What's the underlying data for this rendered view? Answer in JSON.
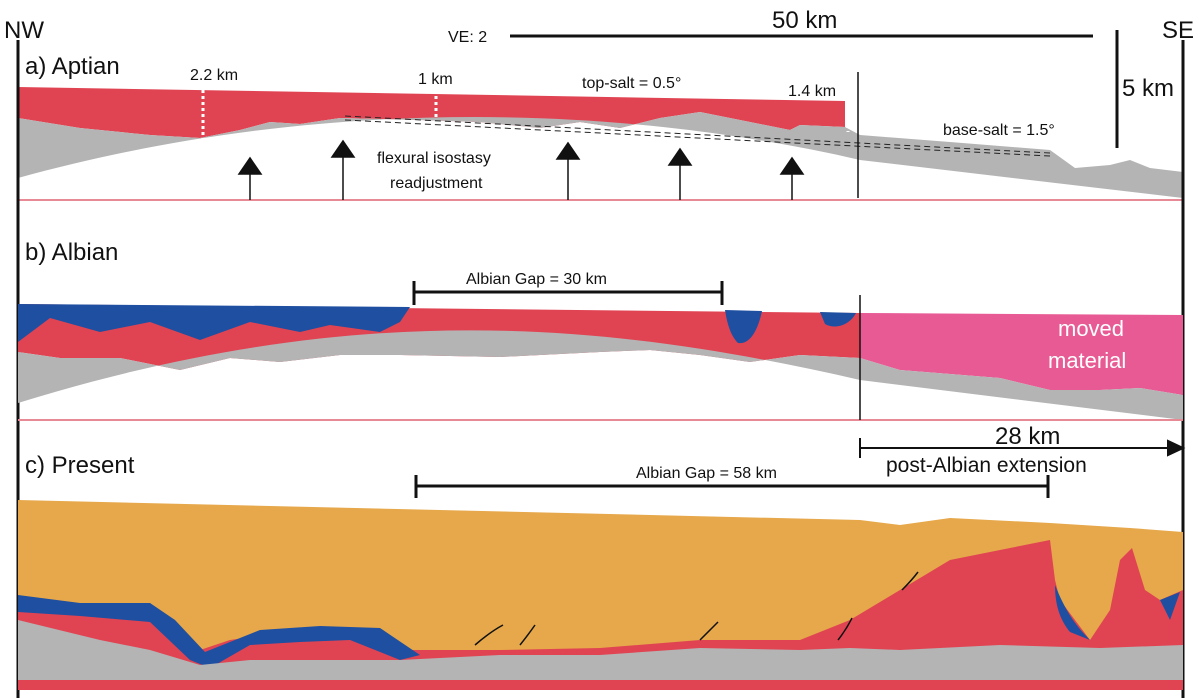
{
  "orientation": {
    "left": "NW",
    "right": "SE"
  },
  "scale": {
    "ve": "VE: 2",
    "horizontal": "50 km",
    "vertical": "5 km"
  },
  "panels": [
    {
      "label": "a) Aptian",
      "annotations": [
        "2.2 km",
        "1 km",
        "top-salt = 0.5°",
        "1.4 km",
        "base-salt = 1.5°"
      ],
      "note": [
        "flexural isostasy",
        "readjustment"
      ]
    },
    {
      "label": "b) Albian",
      "gap": "Albian Gap = 30 km",
      "moved": [
        "moved",
        "material"
      ]
    },
    {
      "label": "c) Present",
      "gap": "Albian Gap = 58 km",
      "extension": [
        "28 km",
        "post-Albian extension"
      ]
    }
  ]
}
